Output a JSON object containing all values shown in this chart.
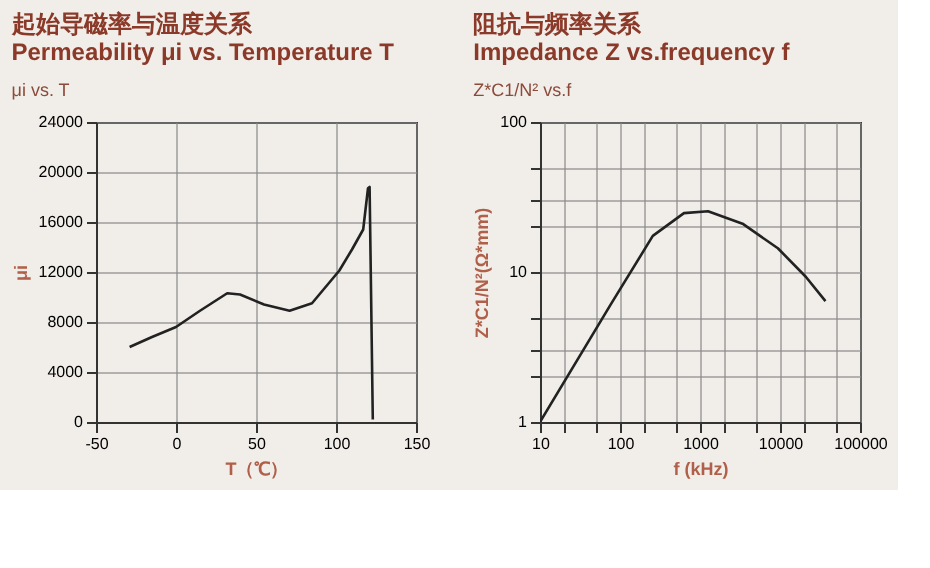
{
  "chart_data": [
    {
      "type": "line",
      "title": "起始导磁率与温度关系\nPermeability μi vs. Temperature T",
      "subtitle": "μi vs. T",
      "xlabel": "T（℃）",
      "ylabel": "μi",
      "x": [
        -29,
        -15,
        0,
        15,
        32,
        40,
        55,
        71,
        85,
        102,
        110,
        117,
        120,
        121,
        123
      ],
      "series": [
        {
          "color": "#222222",
          "values": [
            6000,
            6800,
            7600,
            8900,
            10300,
            10200,
            9400,
            8900,
            9500,
            12100,
            13800,
            15400,
            18700,
            18800,
            200
          ]
        }
      ],
      "xlim": [
        -50,
        150
      ],
      "xticks": [
        -50,
        0,
        50,
        100,
        150
      ],
      "ylim": [
        0,
        24000
      ],
      "yticks": [
        0,
        4000,
        8000,
        12000,
        16000,
        20000,
        24000
      ],
      "grid": true,
      "line_style": "solid",
      "marker": "none"
    },
    {
      "type": "line",
      "title": "阻抗与频率关系\nImpedance Z vs.frequency f",
      "subtitle": "Z*C1/N² vs.f",
      "xlabel": "f (kHz)",
      "ylabel": "Z*C1/N²(Ω*mm)",
      "x": [
        10,
        77,
        257,
        630,
        1260,
        3400,
        9400,
        21000,
        37000
      ],
      "series": [
        {
          "color": "#222222",
          "values": [
            1,
            6.1,
            17.4,
            24.7,
            25.4,
            21,
            14.4,
            9.3,
            6.4
          ]
        }
      ],
      "xlim": [
        10,
        100000
      ],
      "xticks": [
        10,
        {
          "value": 20,
          "label": null
        },
        {
          "value": 50,
          "label": null
        },
        100,
        {
          "value": 200,
          "label": null
        },
        {
          "value": 500,
          "label": null
        },
        1000,
        {
          "value": 2000,
          "label": null
        },
        {
          "value": 5000,
          "label": null
        },
        10000,
        {
          "value": 20000,
          "label": null
        },
        {
          "value": 50000,
          "label": null
        },
        100000
      ],
      "ylim": [
        1,
        100
      ],
      "yticks": [
        1,
        {
          "value": 2,
          "label": null
        },
        {
          "value": 3,
          "label": null
        },
        {
          "value": 5,
          "label": null
        },
        10,
        {
          "value": 20,
          "label": null
        },
        {
          "value": 30,
          "label": null
        },
        {
          "value": 50,
          "label": null
        },
        100
      ],
      "log": "xy",
      "grid": true,
      "line_style": "solid",
      "marker": "none"
    }
  ]
}
